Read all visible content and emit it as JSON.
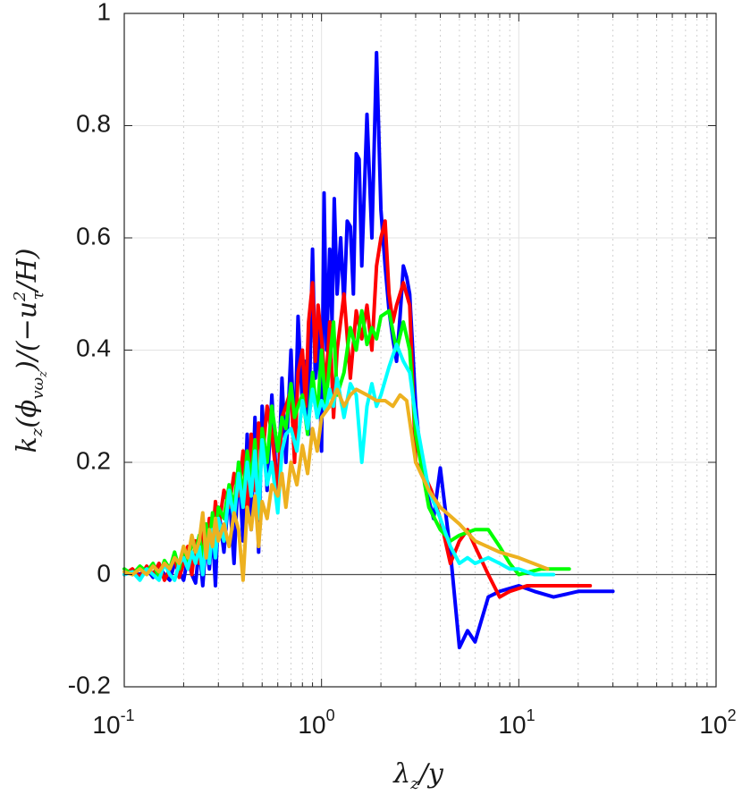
{
  "chart_data": {
    "type": "line",
    "xscale": "log",
    "xlim": [
      0.1,
      100
    ],
    "ylim": [
      -0.2,
      1
    ],
    "grid": true,
    "x_ticks": [
      {
        "base": "10",
        "exp": "-1"
      },
      {
        "base": "10",
        "exp": "0"
      },
      {
        "base": "10",
        "exp": "1"
      },
      {
        "base": "10",
        "exp": "2"
      }
    ],
    "y_ticks": [
      "-0.2",
      "0",
      "0.2",
      "0.4",
      "0.6",
      "0.8",
      "1"
    ],
    "xlabel": {
      "main": "λ",
      "sub": "z",
      "tail": "/y"
    },
    "ylabel": {
      "p1": "k",
      "p1sub": "z",
      "p2": "(ϕ",
      "p2sub": "vω",
      "p2subsub": "z",
      "p3": ")/(−u",
      "p3sup": "2",
      "p3sub": "τ",
      "p4": "/H)"
    },
    "series": [
      {
        "color": "#0000ff",
        "x": [
          0.1,
          0.11,
          0.12,
          0.13,
          0.14,
          0.15,
          0.16,
          0.17,
          0.18,
          0.19,
          0.2,
          0.21,
          0.22,
          0.23,
          0.24,
          0.25,
          0.26,
          0.27,
          0.28,
          0.29,
          0.3,
          0.32,
          0.34,
          0.36,
          0.38,
          0.4,
          0.42,
          0.44,
          0.46,
          0.48,
          0.5,
          0.53,
          0.56,
          0.6,
          0.63,
          0.66,
          0.7,
          0.73,
          0.76,
          0.8,
          0.83,
          0.86,
          0.9,
          0.93,
          0.96,
          1.0,
          1.03,
          1.06,
          1.1,
          1.13,
          1.16,
          1.2,
          1.25,
          1.3,
          1.35,
          1.4,
          1.45,
          1.5,
          1.55,
          1.6,
          1.7,
          1.8,
          1.9,
          2.0,
          2.1,
          2.2,
          2.3,
          2.4,
          2.5,
          2.6,
          2.7,
          2.8,
          2.9,
          3.0,
          3.2,
          3.4,
          3.7,
          4.0,
          4.5,
          5.0,
          5.5,
          6.0,
          7.0,
          8.0,
          10.0,
          12.0,
          15.0,
          20.0,
          30.0
        ],
        "y": [
          0.0,
          0.005,
          0.0,
          0.01,
          -0.005,
          0.015,
          0.0,
          -0.01,
          0.02,
          0.005,
          -0.01,
          0.03,
          0.0,
          -0.015,
          0.05,
          -0.02,
          0.06,
          0.01,
          0.08,
          -0.02,
          0.12,
          0.04,
          0.15,
          0.02,
          0.2,
          0.06,
          0.25,
          0.08,
          0.28,
          0.04,
          0.3,
          0.15,
          0.32,
          0.12,
          0.35,
          0.2,
          0.4,
          0.22,
          0.46,
          0.3,
          0.38,
          0.25,
          0.58,
          0.35,
          0.45,
          0.22,
          0.68,
          0.4,
          0.58,
          0.45,
          0.67,
          0.5,
          0.6,
          0.48,
          0.63,
          0.62,
          0.5,
          0.75,
          0.74,
          0.55,
          0.82,
          0.6,
          0.93,
          0.65,
          0.55,
          0.47,
          0.42,
          0.38,
          0.46,
          0.55,
          0.53,
          0.5,
          0.4,
          0.3,
          0.2,
          0.15,
          0.1,
          0.19,
          0.04,
          -0.13,
          -0.1,
          -0.12,
          -0.04,
          -0.03,
          -0.02,
          -0.03,
          -0.04,
          -0.03,
          -0.03
        ]
      },
      {
        "color": "#ff0000",
        "x": [
          0.1,
          0.11,
          0.12,
          0.13,
          0.14,
          0.15,
          0.16,
          0.17,
          0.18,
          0.19,
          0.2,
          0.21,
          0.22,
          0.23,
          0.24,
          0.25,
          0.26,
          0.27,
          0.28,
          0.29,
          0.3,
          0.32,
          0.34,
          0.36,
          0.38,
          0.4,
          0.42,
          0.44,
          0.46,
          0.48,
          0.5,
          0.53,
          0.56,
          0.6,
          0.63,
          0.66,
          0.7,
          0.73,
          0.76,
          0.8,
          0.83,
          0.86,
          0.9,
          0.93,
          0.96,
          1.0,
          1.05,
          1.1,
          1.15,
          1.2,
          1.3,
          1.4,
          1.5,
          1.6,
          1.7,
          1.8,
          1.9,
          2.0,
          2.1,
          2.2,
          2.3,
          2.4,
          2.6,
          2.8,
          3.0,
          3.3,
          3.6,
          4.0,
          4.5,
          5.0,
          5.5,
          6.0,
          7.0,
          8.0,
          9.0,
          11.0,
          14.0,
          18.0,
          23.0
        ],
        "y": [
          0.0,
          0.01,
          -0.005,
          0.015,
          0.0,
          0.02,
          -0.01,
          0.01,
          0.03,
          -0.005,
          0.02,
          0.05,
          0.0,
          0.06,
          0.02,
          0.08,
          0.04,
          0.1,
          0.06,
          0.13,
          0.08,
          0.15,
          0.12,
          0.18,
          0.14,
          0.22,
          0.1,
          0.25,
          0.15,
          0.27,
          0.2,
          0.3,
          0.25,
          0.15,
          0.28,
          0.3,
          0.33,
          0.2,
          0.36,
          0.4,
          0.3,
          0.45,
          0.52,
          0.38,
          0.48,
          0.42,
          0.33,
          0.45,
          0.28,
          0.4,
          0.5,
          0.35,
          0.47,
          0.42,
          0.48,
          0.4,
          0.55,
          0.6,
          0.63,
          0.5,
          0.45,
          0.48,
          0.52,
          0.48,
          0.2,
          0.18,
          0.15,
          0.1,
          0.02,
          0.06,
          0.08,
          0.05,
          0.0,
          -0.04,
          -0.03,
          -0.02,
          -0.02,
          -0.02,
          -0.02
        ]
      },
      {
        "color": "#00ff00",
        "x": [
          0.1,
          0.11,
          0.12,
          0.13,
          0.14,
          0.15,
          0.16,
          0.17,
          0.18,
          0.19,
          0.2,
          0.21,
          0.22,
          0.23,
          0.24,
          0.25,
          0.26,
          0.27,
          0.28,
          0.29,
          0.3,
          0.32,
          0.34,
          0.36,
          0.38,
          0.4,
          0.42,
          0.44,
          0.46,
          0.48,
          0.5,
          0.53,
          0.56,
          0.6,
          0.63,
          0.66,
          0.7,
          0.73,
          0.76,
          0.8,
          0.85,
          0.9,
          0.95,
          1.0,
          1.05,
          1.1,
          1.15,
          1.2,
          1.3,
          1.4,
          1.5,
          1.6,
          1.7,
          1.8,
          1.9,
          2.0,
          2.2,
          2.4,
          2.6,
          2.8,
          3.0,
          3.5,
          4.0,
          4.5,
          5.0,
          6.0,
          7.0,
          8.0,
          9.0,
          10.0,
          13.0,
          18.0
        ],
        "y": [
          0.01,
          0.0,
          0.015,
          0.005,
          0.02,
          -0.005,
          0.025,
          0.01,
          0.04,
          0.01,
          0.05,
          0.02,
          0.06,
          0.04,
          0.07,
          0.02,
          0.09,
          0.05,
          0.11,
          0.06,
          0.12,
          0.1,
          0.16,
          0.12,
          0.2,
          0.14,
          0.22,
          0.17,
          0.24,
          0.12,
          0.26,
          0.2,
          0.3,
          0.22,
          0.28,
          0.26,
          0.34,
          0.28,
          0.3,
          0.32,
          0.25,
          0.36,
          0.28,
          0.4,
          0.3,
          0.38,
          0.45,
          0.32,
          0.36,
          0.44,
          0.4,
          0.47,
          0.41,
          0.44,
          0.42,
          0.46,
          0.47,
          0.4,
          0.45,
          0.4,
          0.25,
          0.12,
          0.08,
          0.06,
          0.07,
          0.08,
          0.08,
          0.05,
          0.02,
          0.0,
          0.01,
          0.01
        ]
      },
      {
        "color": "#00ffff",
        "x": [
          0.1,
          0.11,
          0.12,
          0.13,
          0.14,
          0.15,
          0.16,
          0.17,
          0.18,
          0.19,
          0.2,
          0.21,
          0.22,
          0.23,
          0.24,
          0.25,
          0.26,
          0.27,
          0.28,
          0.29,
          0.3,
          0.32,
          0.34,
          0.36,
          0.38,
          0.4,
          0.42,
          0.44,
          0.46,
          0.48,
          0.5,
          0.53,
          0.56,
          0.6,
          0.63,
          0.66,
          0.7,
          0.75,
          0.8,
          0.85,
          0.9,
          0.95,
          1.0,
          1.05,
          1.1,
          1.15,
          1.2,
          1.3,
          1.4,
          1.5,
          1.6,
          1.7,
          1.8,
          1.9,
          2.0,
          2.2,
          2.4,
          2.6,
          2.8,
          3.0,
          3.5,
          4.0,
          4.5,
          5.0,
          5.5,
          6.0,
          7.0,
          8.0,
          9.0,
          10.0,
          12.0,
          15.0
        ],
        "y": [
          0.0,
          0.005,
          -0.01,
          0.01,
          0.0,
          -0.01,
          0.02,
          0.0,
          -0.01,
          0.02,
          0.03,
          0.01,
          0.04,
          0.02,
          0.05,
          0.0,
          0.06,
          0.02,
          0.08,
          0.03,
          0.1,
          0.06,
          0.15,
          0.1,
          0.18,
          0.12,
          0.2,
          0.14,
          0.22,
          0.1,
          0.24,
          0.16,
          0.2,
          0.11,
          0.22,
          0.25,
          0.26,
          0.22,
          0.31,
          0.26,
          0.33,
          0.28,
          0.31,
          0.29,
          0.33,
          0.3,
          0.35,
          0.28,
          0.34,
          0.32,
          0.2,
          0.3,
          0.34,
          0.3,
          0.32,
          0.37,
          0.41,
          0.38,
          0.36,
          0.28,
          0.15,
          0.1,
          0.05,
          0.02,
          0.03,
          0.02,
          0.03,
          0.02,
          0.01,
          0.01,
          0.0,
          0.0
        ]
      },
      {
        "color": "#edb120",
        "x": [
          0.1,
          0.11,
          0.12,
          0.13,
          0.14,
          0.15,
          0.16,
          0.17,
          0.18,
          0.19,
          0.2,
          0.21,
          0.22,
          0.23,
          0.24,
          0.25,
          0.26,
          0.27,
          0.28,
          0.29,
          0.3,
          0.32,
          0.34,
          0.36,
          0.38,
          0.4,
          0.42,
          0.44,
          0.46,
          0.48,
          0.5,
          0.53,
          0.56,
          0.6,
          0.63,
          0.66,
          0.7,
          0.75,
          0.8,
          0.85,
          0.9,
          0.95,
          1.0,
          1.1,
          1.2,
          1.3,
          1.4,
          1.5,
          1.7,
          1.9,
          2.1,
          2.3,
          2.5,
          2.7,
          3.0,
          3.5,
          4.0,
          5.0,
          6.0,
          8.0,
          10.0,
          14.0
        ],
        "y": [
          0.005,
          0.0,
          0.01,
          0.0,
          0.015,
          0.005,
          0.02,
          0.01,
          0.03,
          0.02,
          0.05,
          0.03,
          0.07,
          0.04,
          0.06,
          0.11,
          0.03,
          0.08,
          0.05,
          0.1,
          0.06,
          0.09,
          0.05,
          0.11,
          0.08,
          -0.01,
          0.12,
          0.08,
          0.14,
          0.05,
          0.13,
          0.1,
          0.16,
          0.14,
          0.18,
          0.12,
          0.2,
          0.16,
          0.23,
          0.18,
          0.26,
          0.22,
          0.28,
          0.3,
          0.33,
          0.3,
          0.32,
          0.33,
          0.32,
          0.31,
          0.31,
          0.3,
          0.32,
          0.31,
          0.2,
          0.15,
          0.12,
          0.09,
          0.06,
          0.04,
          0.03,
          0.01
        ]
      }
    ]
  }
}
